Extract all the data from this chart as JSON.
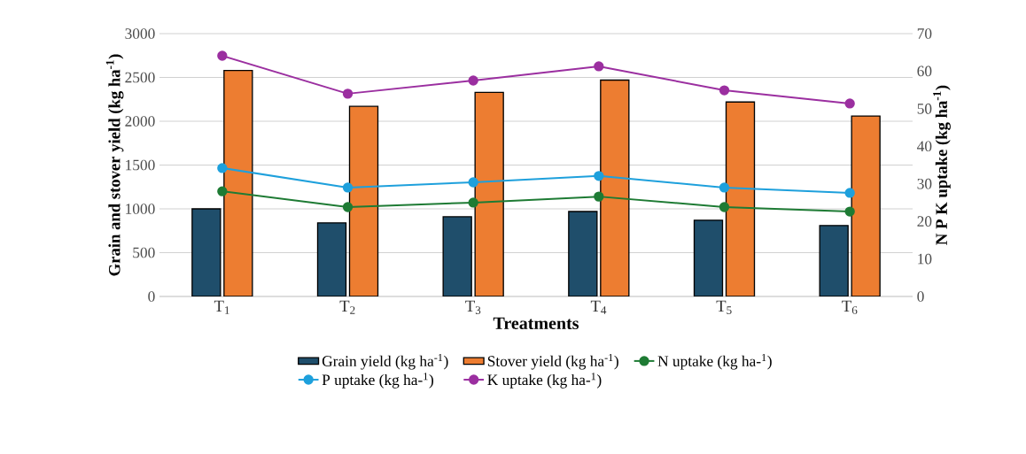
{
  "chart_data": {
    "type": "bar",
    "xlabel": "Treatments",
    "ylabel": "Grain and stover yield  (kg ha$^{-1}$)",
    "y2label": "N P K uptake  (kg ha$^{-1}$)",
    "categories": [
      "T$_{1}$",
      "T$_{2}$",
      "T$_{3}$",
      "T$_{4}$",
      "T$_{5}$",
      "T$_{6}$"
    ],
    "series": [
      {
        "name": "Grain yield  (kg ha$^{-1}$)",
        "color": "#1f4e6b",
        "values": [
          1000,
          840,
          910,
          970,
          870,
          810
        ]
      },
      {
        "name": "Stover yield  (kg ha$^{-1}$)",
        "color": "#ed7d31",
        "values": [
          2580,
          2170,
          2330,
          2470,
          2220,
          2060
        ]
      },
      {
        "name": "N uptake (kg ha-$^{1}$)",
        "type": "line",
        "axis": "y2",
        "color": "#1e7b34",
        "values": [
          28.0,
          23.8,
          25.0,
          26.6,
          23.8,
          22.6
        ]
      },
      {
        "name": "P uptake (kg ha-$^{1}$)",
        "type": "line",
        "axis": "y2",
        "color": "#1ea0dc",
        "values": [
          34.2,
          29.0,
          30.4,
          32.1,
          29.0,
          27.6
        ]
      },
      {
        "name": "K uptake (kg ha-$^{1}$)",
        "type": "line",
        "axis": "y2",
        "color": "#9b2fa0",
        "values": [
          64.1,
          54.0,
          57.5,
          61.3,
          54.9,
          51.4
        ]
      }
    ],
    "ylim": [
      0,
      3000
    ],
    "yticks": [
      0,
      500,
      1000,
      1500,
      2000,
      2500,
      3000
    ],
    "y2lim": [
      0,
      70
    ],
    "y2ticks": [
      0,
      10,
      20,
      30,
      40,
      50,
      60,
      70
    ],
    "grid": "y",
    "legend": "bottom",
    "marker": "circle"
  }
}
